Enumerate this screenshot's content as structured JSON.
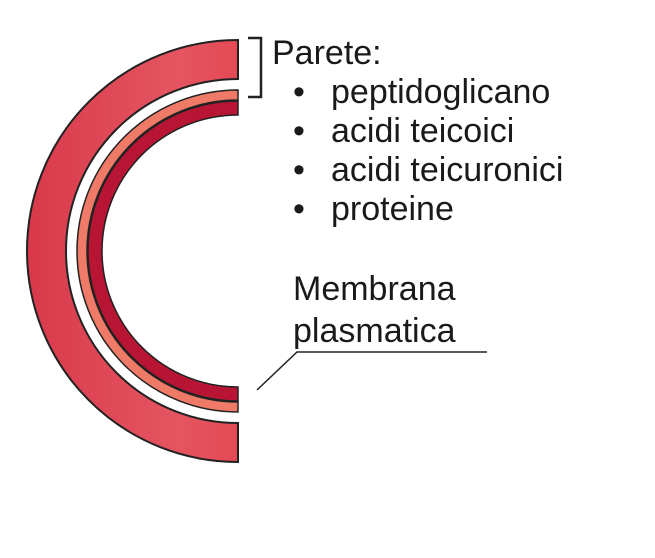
{
  "wall": {
    "title": "Parete:",
    "items": [
      "peptidoglicano",
      "acidi teicoici",
      "acidi teicuronici",
      "proteine"
    ],
    "bullet": "•"
  },
  "membrane": {
    "line1": "Membrana",
    "line2": "plasmatica"
  },
  "colors": {
    "wall_outer": "#e34a55",
    "wall_inner_edge": "#c0283c",
    "periplasm_band": "#f07a68",
    "membrane": "#b81535",
    "outline": "#222222"
  }
}
